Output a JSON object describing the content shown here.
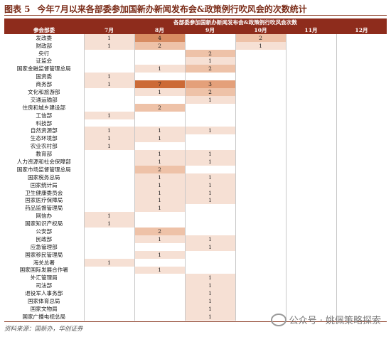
{
  "figure": {
    "label": "图表 5",
    "title": "今年7月以来各部委参加国新办新闻发布会&政策例行吹风会的次数统计"
  },
  "table": {
    "title_row": "各部委参加国新办新闻发布会&政策例行吹风会次数",
    "dept_header": "参会部委",
    "months": [
      "7月",
      "8月",
      "9月",
      "10月",
      "11月",
      "12月"
    ],
    "rows": [
      {
        "dept": "发改委",
        "v": [
          "1",
          "4",
          "",
          "2",
          "",
          ""
        ]
      },
      {
        "dept": "财政部",
        "v": [
          "1",
          "2",
          "",
          "1",
          "",
          ""
        ]
      },
      {
        "dept": "央行",
        "v": [
          "",
          "",
          "2",
          "",
          "",
          ""
        ]
      },
      {
        "dept": "证监会",
        "v": [
          "",
          "",
          "1",
          "",
          "",
          ""
        ]
      },
      {
        "dept": "国家金融监督管理总局",
        "v": [
          "",
          "1",
          "2",
          "",
          "",
          ""
        ]
      },
      {
        "dept": "国资委",
        "v": [
          "1",
          "",
          "",
          "",
          "",
          ""
        ]
      },
      {
        "dept": "商务部",
        "v": [
          "1",
          "7",
          "3",
          "",
          "",
          ""
        ]
      },
      {
        "dept": "文化和旅游部",
        "v": [
          "",
          "1",
          "2",
          "",
          "",
          ""
        ]
      },
      {
        "dept": "交通运输部",
        "v": [
          "",
          "",
          "1",
          "",
          "",
          ""
        ]
      },
      {
        "dept": "住房和城乡建设部",
        "v": [
          "",
          "2",
          "",
          "",
          "",
          ""
        ]
      },
      {
        "dept": "工信部",
        "v": [
          "1",
          "",
          "",
          "",
          "",
          ""
        ]
      },
      {
        "dept": "科技部",
        "v": [
          "",
          "",
          "",
          "",
          "",
          ""
        ]
      },
      {
        "dept": "自然资源部",
        "v": [
          "1",
          "1",
          "1",
          "",
          "",
          ""
        ]
      },
      {
        "dept": "生态环境部",
        "v": [
          "1",
          "1",
          "",
          "",
          "",
          ""
        ]
      },
      {
        "dept": "农业农村部",
        "v": [
          "1",
          "",
          "",
          "",
          "",
          ""
        ]
      },
      {
        "dept": "教育部",
        "v": [
          "",
          "1",
          "1",
          "",
          "",
          ""
        ]
      },
      {
        "dept": "人力资源和社会保障部",
        "v": [
          "",
          "1",
          "1",
          "",
          "",
          ""
        ]
      },
      {
        "dept": "国家市场监督管理总局",
        "v": [
          "",
          "2",
          "",
          "",
          "",
          ""
        ]
      },
      {
        "dept": "国家税务总局",
        "v": [
          "",
          "1",
          "1",
          "",
          "",
          ""
        ]
      },
      {
        "dept": "国家统计局",
        "v": [
          "",
          "1",
          "1",
          "",
          "",
          ""
        ]
      },
      {
        "dept": "卫生健康委员会",
        "v": [
          "",
          "1",
          "1",
          "",
          "",
          ""
        ]
      },
      {
        "dept": "国家医疗保障局",
        "v": [
          "",
          "1",
          "1",
          "",
          "",
          ""
        ]
      },
      {
        "dept": "药品监督管理局",
        "v": [
          "",
          "1",
          "",
          "",
          "",
          ""
        ]
      },
      {
        "dept": "网信办",
        "v": [
          "1",
          "",
          "",
          "",
          "",
          ""
        ]
      },
      {
        "dept": "国家知识产权局",
        "v": [
          "1",
          "",
          "",
          "",
          "",
          ""
        ]
      },
      {
        "dept": "公安部",
        "v": [
          "",
          "2",
          "",
          "",
          "",
          ""
        ]
      },
      {
        "dept": "民政部",
        "v": [
          "",
          "1",
          "1",
          "",
          "",
          ""
        ]
      },
      {
        "dept": "应急管理部",
        "v": [
          "",
          "",
          "1",
          "",
          "",
          ""
        ]
      },
      {
        "dept": "国家移民管理局",
        "v": [
          "",
          "1",
          "",
          "",
          "",
          ""
        ]
      },
      {
        "dept": "海关总署",
        "v": [
          "1",
          "",
          "",
          "",
          "",
          ""
        ]
      },
      {
        "dept": "国家国际发展合作署",
        "v": [
          "",
          "1",
          "",
          "",
          "",
          ""
        ]
      },
      {
        "dept": "外汇管理局",
        "v": [
          "",
          "",
          "1",
          "",
          "",
          ""
        ]
      },
      {
        "dept": "司法部",
        "v": [
          "",
          "",
          "1",
          "",
          "",
          ""
        ]
      },
      {
        "dept": "退役军人事务部",
        "v": [
          "",
          "",
          "1",
          "",
          "",
          ""
        ]
      },
      {
        "dept": "国家体育总局",
        "v": [
          "",
          "",
          "1",
          "",
          "",
          ""
        ]
      },
      {
        "dept": "国家文物局",
        "v": [
          "",
          "",
          "1",
          "",
          "",
          ""
        ]
      },
      {
        "dept": "国家广播电视总局",
        "v": [
          "",
          "",
          "1",
          "",
          "",
          ""
        ]
      }
    ]
  },
  "source": "资料来源：国新办，华创证券",
  "watermark": "公众号 · 姚佩策略探索",
  "colors": {
    "header_bg": "#8e2c1c",
    "title_color": "#7a2a16",
    "shade_1": "#f6e0d4",
    "shade_2": "#eec2a8",
    "shade_3": "#e4a07a",
    "shade_4": "#d88c62",
    "shade_7": "#cc6a36"
  }
}
